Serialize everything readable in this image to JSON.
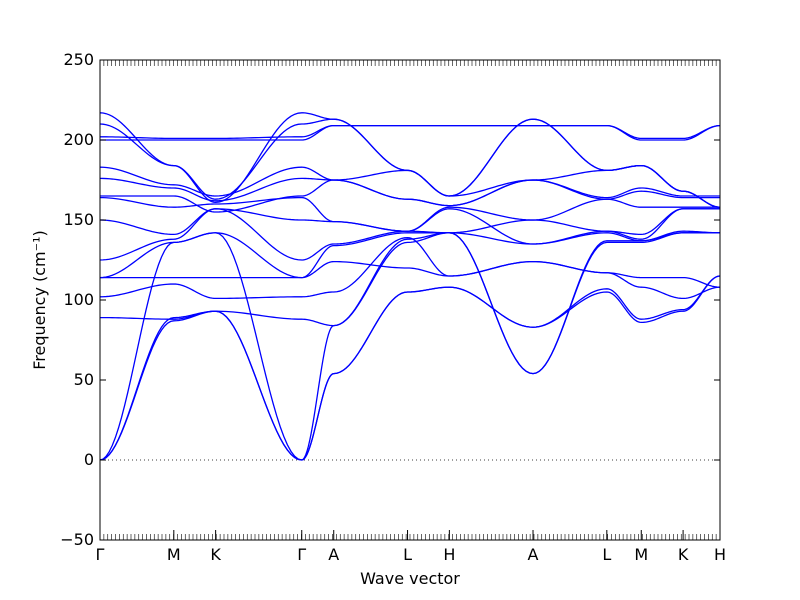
{
  "chart_data": {
    "type": "line",
    "xlabel": "Wave vector",
    "ylabel": "Frequency (cm⁻¹)",
    "ylim": [
      -50,
      250
    ],
    "yticks": [
      -50,
      0,
      50,
      100,
      150,
      200,
      250
    ],
    "xlim": [
      0,
      12.6
    ],
    "xticks": [
      {
        "label": "Γ",
        "x": 0
      },
      {
        "label": "M",
        "x": 1.5
      },
      {
        "label": "K",
        "x": 2.35
      },
      {
        "label": "Γ",
        "x": 4.1
      },
      {
        "label": "A",
        "x": 4.75
      },
      {
        "label": "L",
        "x": 6.25
      },
      {
        "label": "H",
        "x": 7.1
      },
      {
        "label": "A",
        "x": 8.8
      },
      {
        "label": "L",
        "x": 10.3
      },
      {
        "label": "M",
        "x": 11.0
      },
      {
        "label": "K",
        "x": 11.85
      },
      {
        "label": "H",
        "x": 12.6
      }
    ],
    "zero_line": true,
    "line_color": "#0000ff",
    "series": [
      {
        "x": [
          0,
          1.5,
          2.35,
          4.1,
          4.75,
          6.25,
          7.1,
          8.8,
          10.3,
          11.0,
          11.85,
          12.6
        ],
        "y": [
          0,
          87,
          93,
          0,
          54,
          105,
          108,
          83,
          105,
          86,
          93,
          115
        ]
      },
      {
        "x": [
          0,
          1.5,
          2.35,
          4.1,
          4.75,
          6.25,
          7.1,
          8.8,
          10.3,
          11.0,
          11.85,
          12.6
        ],
        "y": [
          0,
          89,
          93,
          0,
          54,
          105,
          108,
          83,
          107,
          88,
          94,
          115
        ]
      },
      {
        "x": [
          0,
          1.5,
          2.35,
          4.1,
          4.75,
          6.25,
          7.1,
          8.8,
          10.3,
          11.0,
          11.85,
          12.6
        ],
        "y": [
          0,
          136,
          142,
          0,
          84,
          136,
          142,
          54,
          136,
          136,
          142,
          142
        ]
      },
      {
        "x": [
          0,
          1.5,
          2.35,
          4.1,
          4.75,
          6.25,
          7.1,
          8.8,
          10.3,
          11.0,
          11.85,
          12.6
        ],
        "y": [
          89,
          88,
          93,
          88,
          84,
          138,
          142,
          54,
          137,
          137,
          142,
          142
        ]
      },
      {
        "x": [
          0,
          1.5,
          2.35,
          4.1,
          4.75,
          6.25,
          7.1,
          8.8,
          10.3,
          11.0,
          11.85,
          12.6
        ],
        "y": [
          102,
          110,
          101,
          102,
          105,
          139,
          115,
          124,
          117,
          108,
          101,
          108
        ]
      },
      {
        "x": [
          0,
          1.5,
          2.35,
          4.1,
          4.75,
          6.25,
          7.1,
          8.8,
          10.3,
          11.0,
          11.85,
          12.6
        ],
        "y": [
          114,
          114,
          114,
          114,
          124,
          120,
          115,
          124,
          117,
          114,
          114,
          108
        ]
      },
      {
        "x": [
          0,
          1.5,
          2.35,
          4.1,
          4.75,
          6.25,
          7.1,
          8.8,
          10.3,
          11.0,
          11.85,
          12.6
        ],
        "y": [
          114,
          136,
          142,
          114,
          134,
          142,
          142,
          135,
          142,
          137,
          143,
          142
        ]
      },
      {
        "x": [
          0,
          1.5,
          2.35,
          4.1,
          4.75,
          6.25,
          7.1,
          8.8,
          10.3,
          11.0,
          11.85,
          12.6
        ],
        "y": [
          125,
          138,
          157,
          125,
          135,
          143,
          157,
          135,
          143,
          138,
          157,
          157
        ]
      },
      {
        "x": [
          0,
          1.5,
          2.35,
          4.1,
          4.75,
          6.25,
          7.1,
          8.8,
          10.3,
          11.0,
          11.85,
          12.6
        ],
        "y": [
          150,
          141,
          157,
          150,
          149,
          143,
          142,
          150,
          143,
          141,
          157,
          157
        ]
      },
      {
        "x": [
          0,
          1.5,
          2.35,
          4.1,
          4.75,
          6.25,
          7.1,
          8.8,
          10.3,
          11.0,
          11.85,
          12.6
        ],
        "y": [
          164,
          158,
          160,
          164,
          149,
          143,
          158,
          150,
          163,
          158,
          158,
          158
        ]
      },
      {
        "x": [
          0,
          1.5,
          2.35,
          4.1,
          4.75,
          6.25,
          7.1,
          8.8,
          10.3,
          11.0,
          11.85,
          12.6
        ],
        "y": [
          165,
          165,
          155,
          165,
          175,
          163,
          159,
          175,
          163,
          168,
          164,
          164
        ]
      },
      {
        "x": [
          0,
          1.5,
          2.35,
          4.1,
          4.75,
          6.25,
          7.1,
          8.8,
          10.3,
          11.0,
          11.85,
          12.6
        ],
        "y": [
          176,
          170,
          162,
          176,
          175,
          163,
          159,
          175,
          164,
          170,
          165,
          165
        ]
      },
      {
        "x": [
          0,
          1.5,
          2.35,
          4.1,
          4.75,
          6.25,
          7.1,
          8.8,
          10.3,
          11.0,
          11.85,
          12.6
        ],
        "y": [
          183,
          172,
          165,
          183,
          175,
          181,
          165,
          175,
          181,
          184,
          168,
          158
        ]
      },
      {
        "x": [
          0,
          1.5,
          2.35,
          4.1,
          4.75,
          6.25,
          7.1,
          8.8,
          10.3,
          11.0,
          11.85,
          12.6
        ],
        "y": [
          200,
          200,
          200,
          200,
          209,
          209,
          209,
          209,
          209,
          200,
          200,
          209
        ]
      },
      {
        "x": [
          0,
          1.5,
          2.35,
          4.1,
          4.75,
          6.25,
          7.1,
          8.8,
          10.3,
          11.0,
          11.85,
          12.6
        ],
        "y": [
          202,
          201,
          201,
          202,
          209,
          209,
          209,
          209,
          209,
          201,
          201,
          209
        ]
      },
      {
        "x": [
          0,
          1.5,
          2.35,
          4.1,
          4.75,
          6.25,
          7.1,
          8.8,
          10.3,
          11.0,
          11.85,
          12.6
        ],
        "y": [
          210,
          184,
          163,
          210,
          213,
          181,
          165,
          213,
          181,
          184,
          168,
          158
        ]
      },
      {
        "x": [
          0,
          1.5,
          2.35,
          4.1,
          4.75,
          6.25,
          7.1,
          8.8,
          10.3,
          11.0,
          11.85,
          12.6
        ],
        "y": [
          217,
          184,
          161,
          217,
          213,
          181,
          165,
          213,
          181,
          184,
          168,
          158
        ]
      }
    ]
  }
}
